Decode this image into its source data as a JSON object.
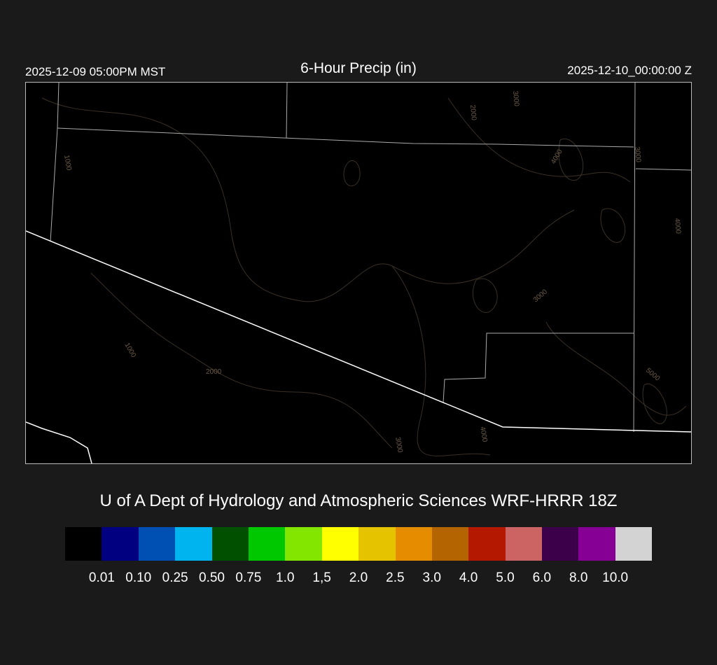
{
  "header": {
    "valid_local": "2025-12-09 05:00PM MST",
    "title": "6-Hour Precip (in)",
    "valid_utc": "2025-12-10_00:00:00 Z"
  },
  "map": {
    "contour_labels": [
      "1000",
      "2000",
      "3000",
      "4000",
      "3000",
      "4000",
      "3000",
      "1000",
      "2000",
      "3000",
      "4000",
      "5000"
    ],
    "contour_color": "#6b5a45"
  },
  "credit": "U of A Dept of Hydrology and Atmospheric Sciences WRF-HRRR 18Z",
  "legend": {
    "colors": [
      "#000000",
      "#000080",
      "#0050b4",
      "#00b4f0",
      "#005000",
      "#00c800",
      "#82e600",
      "#ffff00",
      "#e6c300",
      "#e68c00",
      "#b46400",
      "#b41900",
      "#cd6464",
      "#3c004b",
      "#870096",
      "#d3d3d3"
    ],
    "labels": [
      "0.01",
      "0.10",
      "0.25",
      "0.50",
      "0.75",
      "1.0",
      "1,5",
      "2.0",
      "2.5",
      "3.0",
      "4.0",
      "5.0",
      "6.0",
      "8.0",
      "10.0"
    ]
  }
}
